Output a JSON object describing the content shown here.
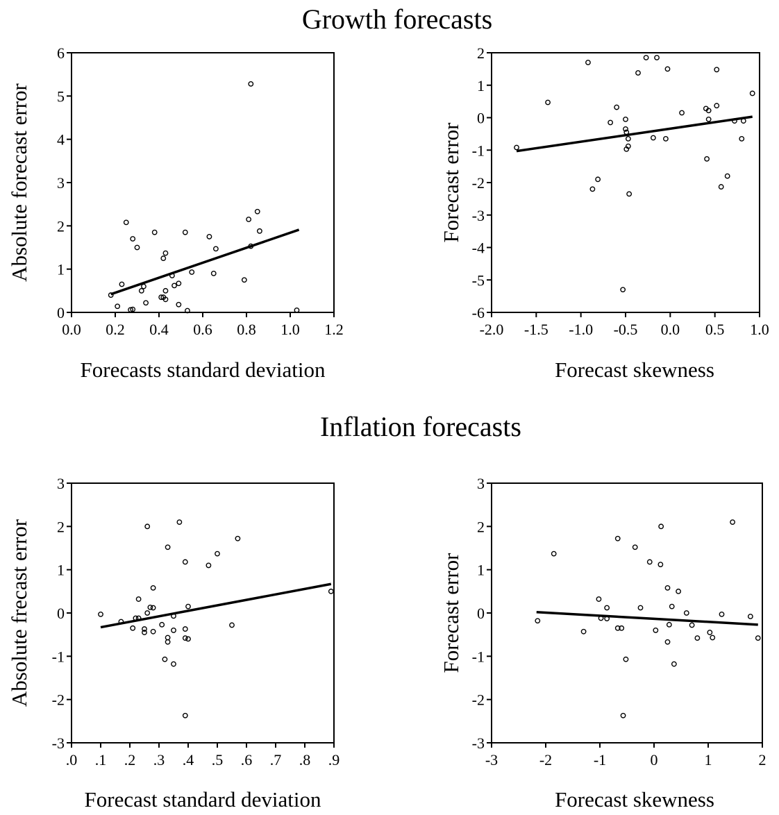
{
  "figure": {
    "panel_titles": [
      "Growth forecasts",
      "Inflation forecasts"
    ]
  },
  "chart_data": [
    {
      "type": "scatter",
      "title": "",
      "xlabel": "Forecasts standard deviation",
      "ylabel": "Absolute forecast error",
      "xlim": [
        0.0,
        1.2
      ],
      "ylim": [
        0,
        6
      ],
      "xticks": [
        "0.0",
        "0.2",
        "0.4",
        "0.6",
        "0.8",
        "1.0",
        "1.2"
      ],
      "xtick_values": [
        0.0,
        0.2,
        0.4,
        0.6,
        0.8,
        1.0,
        1.2
      ],
      "yticks": [
        "0",
        "1",
        "2",
        "3",
        "4",
        "5",
        "6"
      ],
      "ytick_values": [
        0,
        1,
        2,
        3,
        4,
        5,
        6
      ],
      "grid": false,
      "points": [
        [
          0.82,
          5.28
        ],
        [
          0.25,
          2.08
        ],
        [
          0.38,
          1.85
        ],
        [
          0.52,
          1.85
        ],
        [
          0.63,
          1.75
        ],
        [
          0.85,
          2.33
        ],
        [
          0.81,
          2.15
        ],
        [
          0.86,
          1.88
        ],
        [
          0.28,
          1.7
        ],
        [
          0.3,
          1.5
        ],
        [
          0.43,
          1.37
        ],
        [
          0.66,
          1.47
        ],
        [
          0.42,
          1.25
        ],
        [
          0.82,
          1.53
        ],
        [
          0.55,
          0.93
        ],
        [
          0.46,
          0.85
        ],
        [
          0.65,
          0.9
        ],
        [
          0.79,
          0.75
        ],
        [
          0.47,
          0.62
        ],
        [
          0.49,
          0.67
        ],
        [
          0.23,
          0.65
        ],
        [
          0.33,
          0.6
        ],
        [
          0.32,
          0.5
        ],
        [
          0.43,
          0.5
        ],
        [
          0.18,
          0.4
        ],
        [
          0.42,
          0.35
        ],
        [
          0.43,
          0.3
        ],
        [
          0.41,
          0.35
        ],
        [
          0.34,
          0.22
        ],
        [
          0.49,
          0.18
        ],
        [
          0.21,
          0.14
        ],
        [
          0.27,
          0.06
        ],
        [
          0.28,
          0.07
        ],
        [
          0.53,
          0.04
        ],
        [
          1.03,
          0.05
        ]
      ],
      "fit_line": [
        [
          0.18,
          0.42
        ],
        [
          1.04,
          1.91
        ]
      ]
    },
    {
      "type": "scatter",
      "title": "",
      "xlabel": "Forecast skewness",
      "ylabel": "Forecast error",
      "xlim": [
        -2.0,
        1.0
      ],
      "ylim": [
        -6,
        2
      ],
      "xticks": [
        "-2.0",
        "-1.5",
        "-1.0",
        "-0.5",
        "0.0",
        "0.5",
        "1.0"
      ],
      "xtick_values": [
        -2.0,
        -1.5,
        -1.0,
        -0.5,
        0.0,
        0.5,
        1.0
      ],
      "yticks": [
        "-6",
        "-5",
        "-4",
        "-3",
        "-2",
        "-1",
        "0",
        "1",
        "2"
      ],
      "ytick_values": [
        -6,
        -5,
        -4,
        -3,
        -2,
        -1,
        0,
        1,
        2
      ],
      "grid": false,
      "points": [
        [
          -0.27,
          1.85
        ],
        [
          -0.15,
          1.85
        ],
        [
          -0.92,
          1.7
        ],
        [
          -0.03,
          1.5
        ],
        [
          0.52,
          1.48
        ],
        [
          -0.36,
          1.38
        ],
        [
          0.92,
          0.75
        ],
        [
          -1.37,
          0.47
        ],
        [
          -0.6,
          0.32
        ],
        [
          0.52,
          0.37
        ],
        [
          0.4,
          0.28
        ],
        [
          0.43,
          0.22
        ],
        [
          0.13,
          0.15
        ],
        [
          -0.67,
          -0.15
        ],
        [
          -0.5,
          -0.05
        ],
        [
          0.43,
          -0.05
        ],
        [
          0.72,
          -0.1
        ],
        [
          0.82,
          -0.1
        ],
        [
          -0.5,
          -0.35
        ],
        [
          -0.49,
          -0.45
        ],
        [
          -0.47,
          -0.65
        ],
        [
          -0.19,
          -0.62
        ],
        [
          -0.05,
          -0.65
        ],
        [
          0.8,
          -0.65
        ],
        [
          -0.47,
          -0.88
        ],
        [
          -0.49,
          -0.97
        ],
        [
          -1.72,
          -0.92
        ],
        [
          0.41,
          -1.27
        ],
        [
          0.64,
          -1.8
        ],
        [
          -0.81,
          -1.9
        ],
        [
          -0.87,
          -2.2
        ],
        [
          0.57,
          -2.13
        ],
        [
          -0.46,
          -2.35
        ],
        [
          -0.53,
          -5.3
        ]
      ],
      "fit_line": [
        [
          -1.72,
          -1.03
        ],
        [
          0.92,
          0.03
        ]
      ]
    },
    {
      "type": "scatter",
      "title": "",
      "xlabel": "Forecast standard deviation",
      "ylabel": "Absolute frecast error",
      "xlim": [
        0.0,
        0.9
      ],
      "ylim": [
        -3,
        3
      ],
      "xticks": [
        ".0",
        ".1",
        ".2",
        ".3",
        ".4",
        ".5",
        ".6",
        ".7",
        ".8",
        ".9"
      ],
      "xtick_values": [
        0.0,
        0.1,
        0.2,
        0.3,
        0.4,
        0.5,
        0.6,
        0.7,
        0.8,
        0.9
      ],
      "yticks": [
        "-3",
        "-2",
        "-1",
        "0",
        "1",
        "2",
        "3"
      ],
      "ytick_values": [
        -3,
        -2,
        -1,
        0,
        1,
        2,
        3
      ],
      "grid": false,
      "points": [
        [
          0.37,
          2.1
        ],
        [
          0.26,
          2.0
        ],
        [
          0.57,
          1.72
        ],
        [
          0.33,
          1.52
        ],
        [
          0.5,
          1.37
        ],
        [
          0.39,
          1.18
        ],
        [
          0.47,
          1.1
        ],
        [
          0.28,
          0.58
        ],
        [
          0.89,
          0.5
        ],
        [
          0.23,
          0.32
        ],
        [
          0.27,
          0.13
        ],
        [
          0.28,
          0.12
        ],
        [
          0.4,
          0.15
        ],
        [
          0.26,
          0.0
        ],
        [
          0.1,
          -0.03
        ],
        [
          0.35,
          -0.07
        ],
        [
          0.23,
          -0.12
        ],
        [
          0.22,
          -0.12
        ],
        [
          0.17,
          -0.2
        ],
        [
          0.31,
          -0.27
        ],
        [
          0.55,
          -0.28
        ],
        [
          0.21,
          -0.35
        ],
        [
          0.25,
          -0.37
        ],
        [
          0.35,
          -0.4
        ],
        [
          0.39,
          -0.37
        ],
        [
          0.28,
          -0.43
        ],
        [
          0.25,
          -0.45
        ],
        [
          0.33,
          -0.57
        ],
        [
          0.39,
          -0.58
        ],
        [
          0.4,
          -0.6
        ],
        [
          0.33,
          -0.67
        ],
        [
          0.32,
          -1.07
        ],
        [
          0.35,
          -1.18
        ],
        [
          0.39,
          -2.37
        ]
      ],
      "fit_line": [
        [
          0.1,
          -0.33
        ],
        [
          0.89,
          0.67
        ]
      ]
    },
    {
      "type": "scatter",
      "title": "",
      "xlabel": "Forecast skewness",
      "ylabel": "Forecast error",
      "xlim": [
        -3,
        2
      ],
      "ylim": [
        -3,
        3
      ],
      "xticks": [
        "-3",
        "-2",
        "-1",
        "0",
        "1",
        "2"
      ],
      "xtick_values": [
        -3,
        -2,
        -1,
        0,
        1,
        2
      ],
      "yticks": [
        "-3",
        "-2",
        "-1",
        "0",
        "1",
        "2",
        "3"
      ],
      "ytick_values": [
        -3,
        -2,
        -1,
        0,
        1,
        2,
        3
      ],
      "grid": false,
      "points": [
        [
          1.45,
          2.1
        ],
        [
          0.13,
          2.0
        ],
        [
          -0.67,
          1.72
        ],
        [
          -0.35,
          1.52
        ],
        [
          -1.85,
          1.37
        ],
        [
          -0.08,
          1.18
        ],
        [
          0.12,
          1.12
        ],
        [
          0.25,
          0.58
        ],
        [
          0.45,
          0.5
        ],
        [
          -1.02,
          0.32
        ],
        [
          -0.87,
          0.12
        ],
        [
          -0.25,
          0.12
        ],
        [
          0.33,
          0.15
        ],
        [
          0.6,
          0.0
        ],
        [
          1.25,
          -0.03
        ],
        [
          1.78,
          -0.08
        ],
        [
          -0.98,
          -0.12
        ],
        [
          -0.87,
          -0.13
        ],
        [
          -2.15,
          -0.18
        ],
        [
          0.28,
          -0.27
        ],
        [
          0.7,
          -0.28
        ],
        [
          -0.67,
          -0.35
        ],
        [
          -0.6,
          -0.35
        ],
        [
          0.03,
          -0.4
        ],
        [
          -1.3,
          -0.43
        ],
        [
          1.03,
          -0.45
        ],
        [
          1.08,
          -0.57
        ],
        [
          0.8,
          -0.58
        ],
        [
          1.92,
          -0.58
        ],
        [
          0.25,
          -0.67
        ],
        [
          -0.52,
          -1.07
        ],
        [
          0.37,
          -1.18
        ],
        [
          -0.57,
          -2.37
        ]
      ],
      "fit_line": [
        [
          -2.17,
          0.02
        ],
        [
          1.92,
          -0.27
        ]
      ]
    }
  ]
}
